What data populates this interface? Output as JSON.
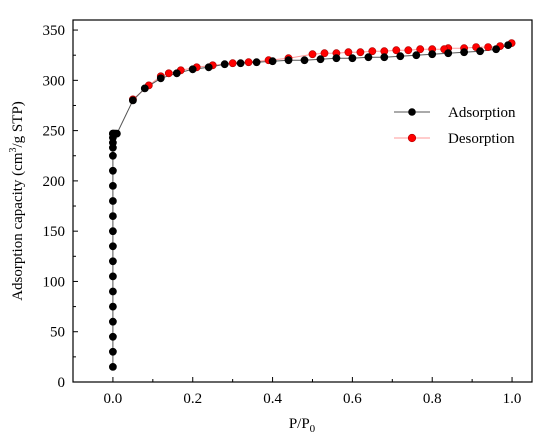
{
  "chart_data": {
    "type": "scatter",
    "title": "",
    "xlabel": "P/P",
    "xlabel_sub": "0",
    "ylabel_pre": "Adsorption capacity (cm",
    "ylabel_sup": "3",
    "ylabel_post": "/g STP)",
    "xlim": [
      -0.1,
      1.05
    ],
    "ylim": [
      0,
      360
    ],
    "xticks": [
      0.0,
      0.2,
      0.4,
      0.6,
      0.8,
      1.0
    ],
    "xtick_labels": [
      "0.0",
      "0.2",
      "0.4",
      "0.6",
      "0.8",
      "1.0"
    ],
    "yticks": [
      0,
      50,
      100,
      150,
      200,
      250,
      300,
      350
    ],
    "ytick_labels": [
      "0",
      "50",
      "100",
      "150",
      "200",
      "250",
      "300",
      "350"
    ],
    "legend_position": "right",
    "series": [
      {
        "name": "Adsorption",
        "color": "#000000",
        "line_color": "#555555",
        "marker": "circle",
        "x": [
          0.0,
          0.0,
          0.0,
          0.0,
          0.0,
          0.0,
          0.0,
          0.0,
          0.0,
          0.0,
          0.0,
          0.0,
          0.0,
          0.0,
          0.0,
          0.0,
          0.0,
          0.0,
          0.0,
          0.0,
          0.003,
          0.006,
          0.01,
          0.05,
          0.08,
          0.12,
          0.16,
          0.2,
          0.24,
          0.28,
          0.32,
          0.36,
          0.4,
          0.44,
          0.48,
          0.52,
          0.56,
          0.6,
          0.64,
          0.68,
          0.72,
          0.76,
          0.8,
          0.84,
          0.88,
          0.92,
          0.96,
          0.99
        ],
        "y": [
          15,
          30,
          45,
          60,
          75,
          90,
          105,
          120,
          135,
          150,
          165,
          180,
          195,
          210,
          225,
          233,
          238,
          243,
          247,
          248,
          249,
          249,
          248,
          280,
          292,
          302,
          307,
          311,
          313,
          316,
          317,
          318,
          319,
          320,
          320,
          321,
          322,
          322,
          323,
          323,
          324,
          325,
          326,
          327,
          328,
          329,
          331,
          335
        ],
        "display_y": [
          15,
          30,
          45,
          60,
          75,
          90,
          105,
          120,
          135,
          150,
          165,
          180,
          195,
          210,
          225,
          233,
          238,
          243,
          247,
          247,
          247,
          247,
          247,
          280,
          292,
          302,
          307,
          311,
          313,
          316,
          317,
          318,
          319,
          320,
          320,
          321,
          322,
          322,
          323,
          323,
          324,
          325,
          326,
          327,
          328,
          329,
          331,
          335
        ]
      },
      {
        "name": "Desorption",
        "color": "#ff0000",
        "line_color": "#ff9999",
        "marker": "circle",
        "x": [
          0.999,
          0.97,
          0.94,
          0.91,
          0.88,
          0.84,
          0.83,
          0.8,
          0.77,
          0.74,
          0.71,
          0.68,
          0.65,
          0.62,
          0.59,
          0.56,
          0.53,
          0.5,
          0.44,
          0.39,
          0.34,
          0.3,
          0.25,
          0.21,
          0.17,
          0.14,
          0.12,
          0.09,
          0.05
        ],
        "y": [
          337,
          334,
          333,
          333,
          332,
          332,
          331,
          331,
          331,
          330,
          330,
          329,
          329,
          328,
          328,
          327,
          327,
          326,
          322,
          320,
          318,
          317,
          315,
          313,
          310,
          307,
          304,
          295,
          281
        ]
      }
    ]
  }
}
